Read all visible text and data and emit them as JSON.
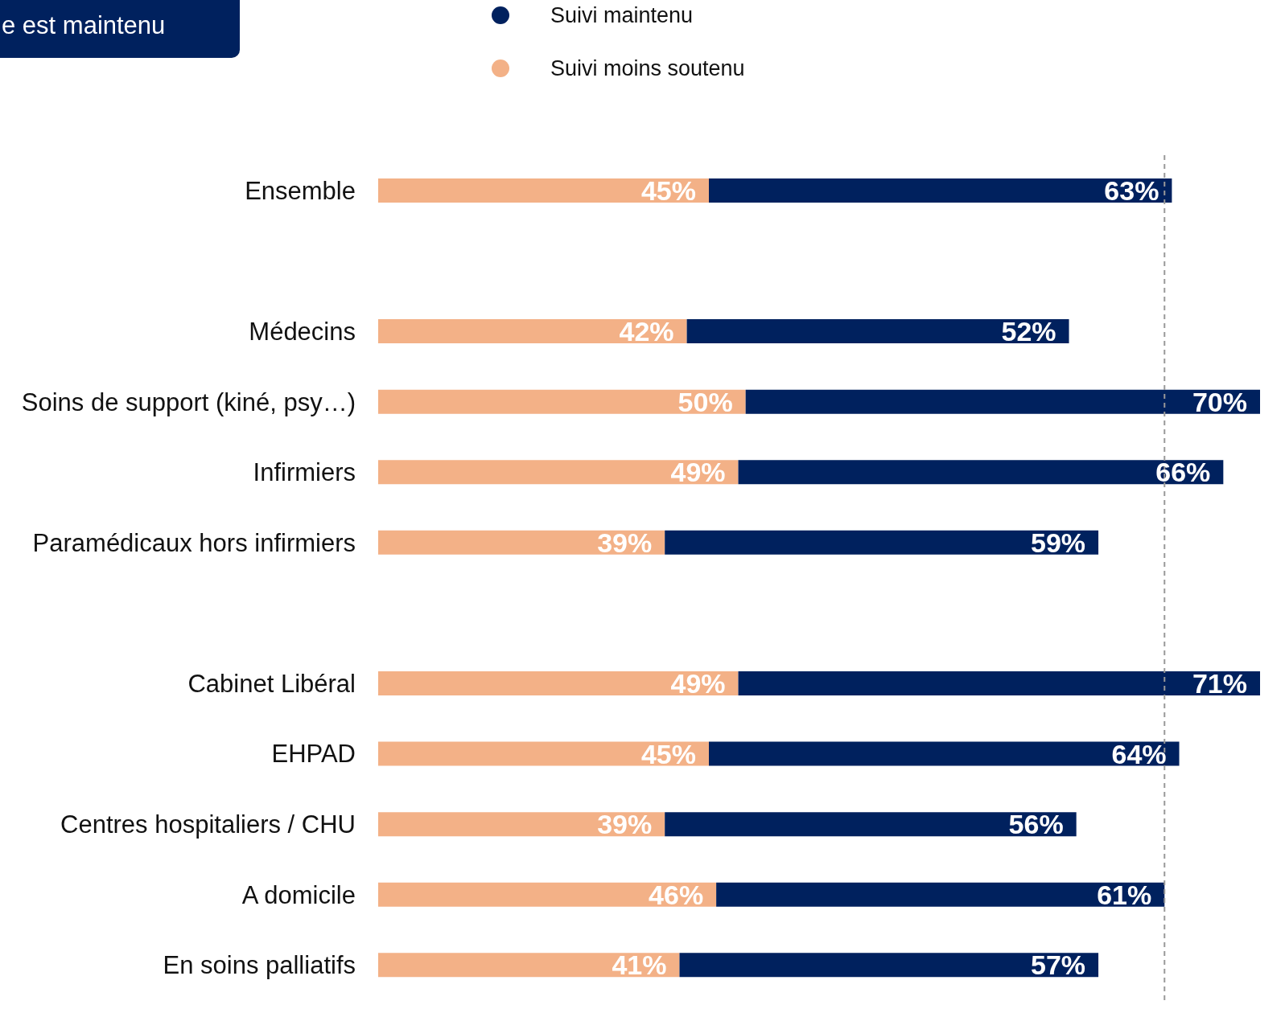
{
  "chart_data": {
    "type": "bar",
    "orientation": "horizontal",
    "stacked": true,
    "title": "e est maintenu",
    "categories": [
      "Ensemble",
      null,
      "Médecins",
      "Soins de support (kiné, psy…)",
      "Infirmiers",
      "Paramédicaux hors infirmiers",
      null,
      "Cabinet Libéral",
      "EHPAD",
      "Centres hospitaliers / CHU",
      "A domicile",
      "En soins palliatifs"
    ],
    "series": [
      {
        "name": "Suivi moins soutenu",
        "color": "#f3b187",
        "values": [
          45,
          null,
          42,
          50,
          49,
          39,
          null,
          49,
          45,
          39,
          46,
          41
        ],
        "value_labels": [
          "45%",
          null,
          "42%",
          "50%",
          "49%",
          "39%",
          null,
          "49%",
          "45%",
          "39%",
          "46%",
          "41%"
        ]
      },
      {
        "name": "Suivi maintenu",
        "color": "#00215e",
        "values": [
          63,
          null,
          52,
          70,
          66,
          59,
          null,
          71,
          64,
          56,
          61,
          57
        ],
        "value_labels": [
          "63%",
          null,
          "52%",
          "70%",
          "66%",
          "59%",
          null,
          "71%",
          "64%",
          "56%",
          "61%",
          "57%"
        ]
      }
    ],
    "xlim": [
      0,
      120
    ],
    "tick_labels": "y",
    "legend": "top",
    "marker": "circle",
    "ref_lines": [
      {
        "axis": "x",
        "value": 107,
        "color": "#999999",
        "line_style": "dashed"
      }
    ]
  }
}
